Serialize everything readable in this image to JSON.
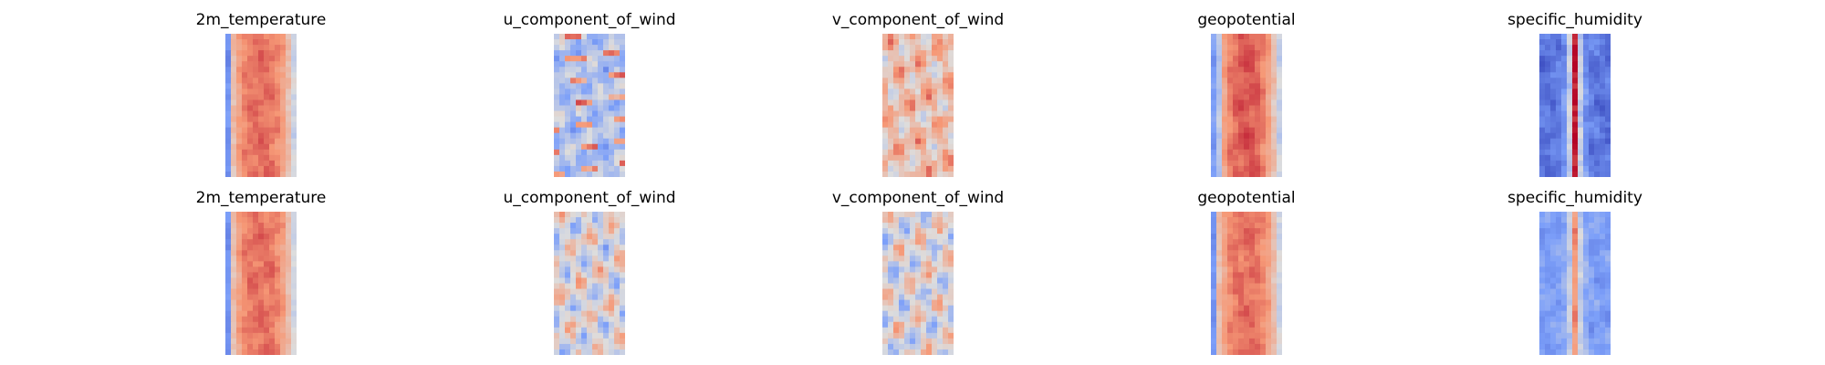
{
  "chart_data": {
    "type": "heatmap",
    "colormap": "coolwarm",
    "axes": "off",
    "rows": [
      {
        "panels": [
          {
            "title": "2m_temperature",
            "pattern": "warm-core"
          },
          {
            "title": "u_component_of_wind",
            "pattern": "cool-noise"
          },
          {
            "title": "v_component_of_wind",
            "pattern": "warm-swirl"
          },
          {
            "title": "geopotential",
            "pattern": "warm-core-strong"
          },
          {
            "title": "specific_humidity",
            "pattern": "cool-edges-hot-spine"
          }
        ]
      },
      {
        "panels": [
          {
            "title": "2m_temperature",
            "pattern": "warm-core"
          },
          {
            "title": "u_component_of_wind",
            "pattern": "neutral-noise"
          },
          {
            "title": "v_component_of_wind",
            "pattern": "neutral-noise"
          },
          {
            "title": "geopotential",
            "pattern": "warm-core"
          },
          {
            "title": "specific_humidity",
            "pattern": "cool-edges-warm-spine"
          }
        ]
      }
    ]
  }
}
